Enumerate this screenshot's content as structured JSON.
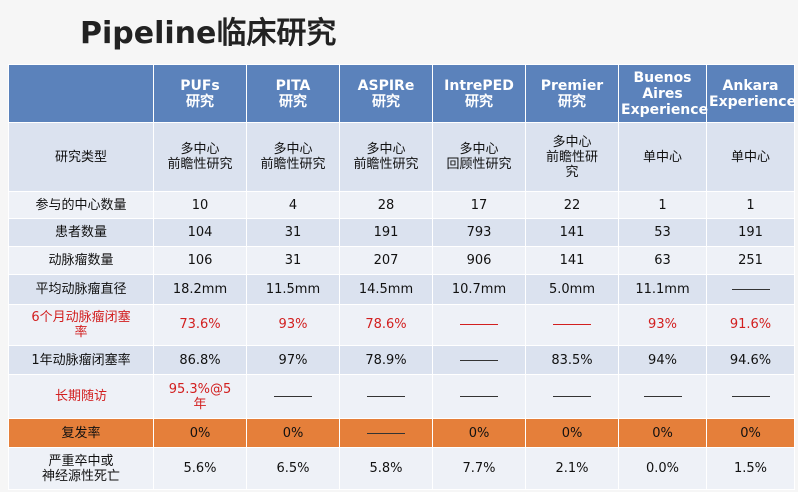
{
  "title": "Pipeline临床研究",
  "headers": [
    "PUFs\n研究",
    "PITA\n研究",
    "ASPIRe\n研究",
    "IntrePED\n研究",
    "Premier\n研究",
    "Buenos\nAires\nExperience",
    "Ankara\nExperience"
  ],
  "rows": [
    {
      "label": "研究类型",
      "values": [
        "多中心\n前瞻性研究",
        "多中心\n前瞻性研究",
        "多中心\n前瞻性研究",
        "多中心\n回顾性研究",
        "多中心\n前瞻性研\n究",
        "单中心",
        "单中心"
      ]
    },
    {
      "label": "参与的中心数量",
      "values": [
        "10",
        "4",
        "28",
        "17",
        "22",
        "1",
        "1"
      ]
    },
    {
      "label": "患者数量",
      "values": [
        "104",
        "31",
        "191",
        "793",
        "141",
        "53",
        "191"
      ]
    },
    {
      "label": "动脉瘤数量",
      "values": [
        "106",
        "31",
        "207",
        "906",
        "141",
        "63",
        "251"
      ]
    },
    {
      "label": "平均动脉瘤直径",
      "values": [
        "18.2mm",
        "11.5mm",
        "14.5mm",
        "10.7mm",
        "5.0mm",
        "11.1mm",
        "—"
      ]
    },
    {
      "label": "6个月动脉瘤闭塞\n率",
      "values": [
        "73.6%",
        "93%",
        "78.6%",
        "—",
        "—",
        "93%",
        "91.6%"
      ]
    },
    {
      "label": "1年动脉瘤闭塞率",
      "values": [
        "86.8%",
        "97%",
        "78.9%",
        "—",
        "83.5%",
        "94%",
        "94.6%"
      ]
    },
    {
      "label": "长期随访",
      "values": [
        "95.3%@5\n年",
        "—",
        "—",
        "—",
        "—",
        "—",
        "—"
      ]
    },
    {
      "label": "复发率",
      "values": [
        "0%",
        "0%",
        "—",
        "0%",
        "0%",
        "0%",
        "0%"
      ]
    },
    {
      "label": "严重卒中或\n神经源性死亡",
      "values": [
        "5.6%",
        "6.5%",
        "5.8%",
        "7.7%",
        "2.1%",
        "0.0%",
        "1.5%"
      ]
    }
  ],
  "colors": {
    "header_bg": "#5b82bb",
    "row_light": "#dbe2ef",
    "row_white": "#eef1f7",
    "row_orange": "#e57f3a",
    "highlight_text": "#d21f1f"
  }
}
